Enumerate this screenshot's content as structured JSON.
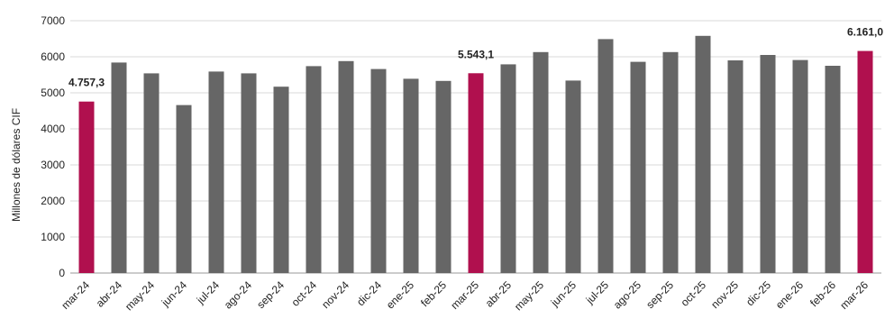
{
  "chart_data": {
    "type": "bar",
    "ylabel": "Millones de dólares CIF",
    "ylim": [
      0,
      7000
    ],
    "yticks": [
      0,
      1000,
      2000,
      3000,
      4000,
      5000,
      6000,
      7000
    ],
    "grid": true,
    "categories": [
      "mar-24",
      "abr-24",
      "may-24",
      "jun-24",
      "jul-24",
      "ago-24",
      "sep-24",
      "oct-24",
      "nov-24",
      "dic-24",
      "ene-25",
      "feb-25",
      "mar-25",
      "abr-25",
      "may-25",
      "jun-25",
      "jul-25",
      "ago-25",
      "sep-25",
      "oct-25",
      "nov-25",
      "dic-25",
      "ene-26",
      "feb-26",
      "mar-26"
    ],
    "values": [
      4757.3,
      5840,
      5540,
      4660,
      5590,
      5540,
      5170,
      5740,
      5880,
      5660,
      5390,
      5330,
      5543.1,
      5790,
      6130,
      5340,
      6490,
      5860,
      6130,
      6580,
      5900,
      6050,
      5910,
      5750,
      6161.0
    ],
    "highlighted_indices": [
      0,
      12,
      24
    ],
    "data_labels": [
      {
        "index": 0,
        "text": "4.757,3"
      },
      {
        "index": 12,
        "text": "5.543,1"
      },
      {
        "index": 24,
        "text": "6.161,0"
      }
    ],
    "colors": {
      "default": "#666666",
      "highlight": "#B0104E",
      "grid": "#d9d9d9",
      "axis": "#999999"
    }
  }
}
